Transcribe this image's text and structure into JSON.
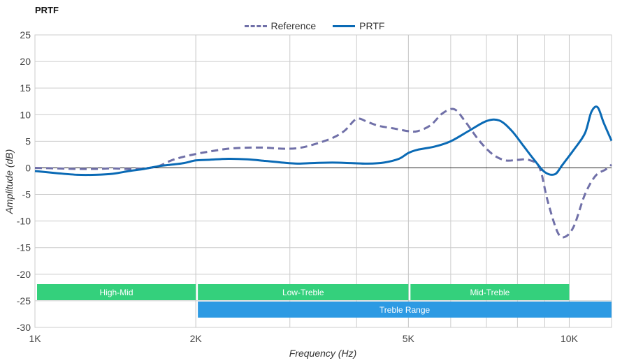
{
  "chart_data": {
    "type": "line",
    "title": "PRTF",
    "xlabel": "Frequency (Hz)",
    "ylabel": "Amplitude (dB)",
    "x_scale": "log",
    "xlim": [
      1000,
      12000
    ],
    "ylim": [
      -30,
      25
    ],
    "x_ticks": [
      {
        "value": 1000,
        "label": "1K"
      },
      {
        "value": 2000,
        "label": "2K"
      },
      {
        "value": 5000,
        "label": "5K"
      },
      {
        "value": 10000,
        "label": "10K"
      }
    ],
    "x_minor_gridlines": [
      3000,
      4000,
      6000,
      7000,
      8000,
      9000
    ],
    "y_ticks": [
      25,
      20,
      15,
      10,
      5,
      0,
      -5,
      -10,
      -15,
      -20,
      -25,
      -30
    ],
    "grid": true,
    "legend_position": "top-center",
    "series": [
      {
        "name": "Reference",
        "color": "#7070a8",
        "style": "dashed",
        "points": [
          [
            1000,
            0.0
          ],
          [
            1100,
            -0.1
          ],
          [
            1200,
            -0.2
          ],
          [
            1300,
            -0.2
          ],
          [
            1400,
            -0.1
          ],
          [
            1500,
            -0.2
          ],
          [
            1600,
            -0.1
          ],
          [
            1700,
            0.3
          ],
          [
            1800,
            1.4
          ],
          [
            1900,
            2.1
          ],
          [
            2000,
            2.6
          ],
          [
            2100,
            3.0
          ],
          [
            2300,
            3.6
          ],
          [
            2500,
            3.8
          ],
          [
            2700,
            3.8
          ],
          [
            2900,
            3.6
          ],
          [
            3100,
            3.7
          ],
          [
            3300,
            4.3
          ],
          [
            3600,
            5.6
          ],
          [
            3800,
            7.0
          ],
          [
            4000,
            9.2
          ],
          [
            4200,
            8.6
          ],
          [
            4400,
            7.9
          ],
          [
            4700,
            7.4
          ],
          [
            5000,
            6.9
          ],
          [
            5200,
            6.9
          ],
          [
            5500,
            8.0
          ],
          [
            5800,
            10.3
          ],
          [
            6100,
            11.0
          ],
          [
            6400,
            8.6
          ],
          [
            6800,
            5.0
          ],
          [
            7200,
            2.5
          ],
          [
            7600,
            1.4
          ],
          [
            8000,
            1.5
          ],
          [
            8400,
            1.5
          ],
          [
            8800,
            0.0
          ],
          [
            9100,
            -6.0
          ],
          [
            9500,
            -12.0
          ],
          [
            9800,
            -13.0
          ],
          [
            10200,
            -11.0
          ],
          [
            10700,
            -5.0
          ],
          [
            11200,
            -1.5
          ],
          [
            11700,
            -0.3
          ],
          [
            12000,
            0.6
          ]
        ]
      },
      {
        "name": "PRTF",
        "color": "#0a6ab5",
        "style": "solid",
        "points": [
          [
            1000,
            -0.6
          ],
          [
            1100,
            -1.0
          ],
          [
            1200,
            -1.3
          ],
          [
            1300,
            -1.3
          ],
          [
            1400,
            -1.1
          ],
          [
            1500,
            -0.6
          ],
          [
            1600,
            -0.2
          ],
          [
            1700,
            0.3
          ],
          [
            1800,
            0.6
          ],
          [
            1900,
            0.9
          ],
          [
            2000,
            1.4
          ],
          [
            2100,
            1.5
          ],
          [
            2300,
            1.7
          ],
          [
            2500,
            1.6
          ],
          [
            2700,
            1.3
          ],
          [
            2900,
            1.0
          ],
          [
            3100,
            0.8
          ],
          [
            3300,
            0.9
          ],
          [
            3600,
            1.0
          ],
          [
            3900,
            0.9
          ],
          [
            4200,
            0.8
          ],
          [
            4500,
            1.0
          ],
          [
            4800,
            1.7
          ],
          [
            5000,
            2.8
          ],
          [
            5200,
            3.4
          ],
          [
            5600,
            4.0
          ],
          [
            6000,
            5.0
          ],
          [
            6500,
            7.0
          ],
          [
            7000,
            8.8
          ],
          [
            7400,
            8.9
          ],
          [
            7800,
            7.0
          ],
          [
            8200,
            4.2
          ],
          [
            8600,
            1.5
          ],
          [
            9000,
            -0.8
          ],
          [
            9400,
            -1.2
          ],
          [
            9700,
            0.5
          ],
          [
            10200,
            3.4
          ],
          [
            10700,
            6.5
          ],
          [
            11000,
            10.5
          ],
          [
            11300,
            11.4
          ],
          [
            11600,
            8.5
          ],
          [
            12000,
            5.1
          ]
        ]
      }
    ],
    "bands": [
      {
        "label": "High-Mid",
        "from": 1000,
        "to": 2000,
        "row": 0,
        "color": "#34d07c"
      },
      {
        "label": "Low-Treble",
        "from": 2000,
        "to": 5000,
        "row": 0,
        "color": "#34d07c"
      },
      {
        "label": "Mid-Treble",
        "from": 5000,
        "to": 10000,
        "row": 0,
        "color": "#34d07c"
      },
      {
        "label": "Treble Range",
        "from": 2000,
        "to": 12000,
        "row": 1,
        "color": "#2d9ae3"
      }
    ]
  }
}
